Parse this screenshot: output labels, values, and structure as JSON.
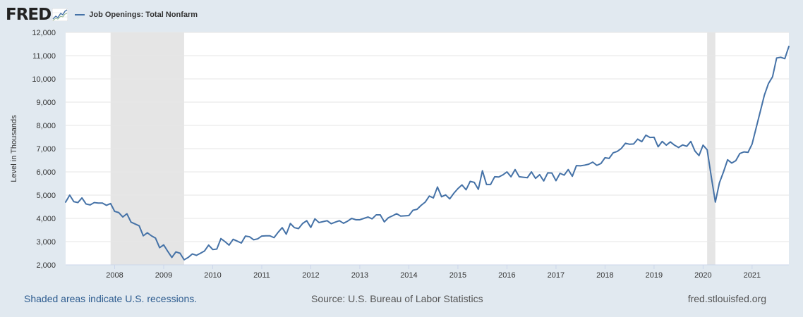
{
  "header": {
    "logo_text": "FRED",
    "legend_label": "Job Openings: Total Nonfarm"
  },
  "footer": {
    "recession_note": "Shaded areas indicate U.S. recessions.",
    "source": "Source: U.S. Bureau of Labor Statistics",
    "site": "fred.stlouisfed.org"
  },
  "colors": {
    "background": "#e1e9f0",
    "plot_background": "#ffffff",
    "series_line": "#4572a7",
    "recession_shade": "#e5e5e5",
    "gridline": "#e6e6e6",
    "link": "#2d5c8f"
  },
  "chart_data": {
    "type": "line",
    "title": "",
    "xlabel": "",
    "ylabel": "Level in Thousands",
    "ylim": [
      2000,
      12000
    ],
    "xlim": [
      2007.0,
      2021.75
    ],
    "y_ticks": [
      2000,
      3000,
      4000,
      5000,
      6000,
      7000,
      8000,
      9000,
      10000,
      11000,
      12000
    ],
    "y_tick_labels": [
      "2,000",
      "3,000",
      "4,000",
      "5,000",
      "6,000",
      "7,000",
      "8,000",
      "9,000",
      "10,000",
      "11,000",
      "12,000"
    ],
    "x_ticks": [
      2008,
      2009,
      2010,
      2011,
      2012,
      2013,
      2014,
      2015,
      2016,
      2017,
      2018,
      2019,
      2020,
      2021
    ],
    "x_tick_labels": [
      "2008",
      "2009",
      "2010",
      "2011",
      "2012",
      "2013",
      "2014",
      "2015",
      "2016",
      "2017",
      "2018",
      "2019",
      "2020",
      "2021"
    ],
    "grid": true,
    "legend_position": "top-left",
    "recessions": [
      {
        "start": 2007.917,
        "end": 2009.417
      },
      {
        "start": 2020.083,
        "end": 2020.25
      }
    ],
    "series": [
      {
        "name": "Job Openings: Total Nonfarm",
        "start_year": 2007,
        "start_month": 1,
        "frequency": "monthly",
        "values": [
          4700,
          5000,
          4720,
          4680,
          4880,
          4620,
          4580,
          4680,
          4660,
          4660,
          4560,
          4640,
          4300,
          4250,
          4060,
          4200,
          3840,
          3760,
          3680,
          3250,
          3380,
          3250,
          3150,
          2740,
          2860,
          2580,
          2320,
          2560,
          2500,
          2220,
          2320,
          2470,
          2410,
          2500,
          2600,
          2850,
          2660,
          2680,
          3130,
          3000,
          2850,
          3100,
          3020,
          2940,
          3240,
          3210,
          3080,
          3120,
          3240,
          3250,
          3250,
          3170,
          3400,
          3600,
          3320,
          3780,
          3600,
          3560,
          3780,
          3900,
          3610,
          3980,
          3820,
          3860,
          3900,
          3770,
          3840,
          3900,
          3790,
          3880,
          4000,
          3940,
          3940,
          4000,
          4060,
          3980,
          4150,
          4150,
          3850,
          4030,
          4110,
          4200,
          4100,
          4110,
          4120,
          4350,
          4390,
          4560,
          4700,
          4960,
          4880,
          5350,
          4930,
          5010,
          4840,
          5080,
          5280,
          5440,
          5230,
          5590,
          5550,
          5250,
          6050,
          5460,
          5460,
          5790,
          5780,
          5870,
          6000,
          5790,
          6100,
          5790,
          5770,
          5750,
          6000,
          5720,
          5880,
          5610,
          5960,
          5950,
          5620,
          5940,
          5860,
          6100,
          5810,
          6270,
          6260,
          6290,
          6330,
          6420,
          6280,
          6360,
          6610,
          6580,
          6820,
          6880,
          7010,
          7230,
          7190,
          7200,
          7410,
          7300,
          7580,
          7480,
          7490,
          7080,
          7310,
          7150,
          7290,
          7150,
          7050,
          7160,
          7100,
          7310,
          6900,
          6700,
          7150,
          6950,
          5800,
          4700,
          5530,
          6000,
          6520,
          6380,
          6480,
          6790,
          6860,
          6840,
          7200,
          7900,
          8600,
          9300,
          9800,
          10090,
          10900,
          10930,
          10870,
          11400
        ]
      }
    ]
  }
}
